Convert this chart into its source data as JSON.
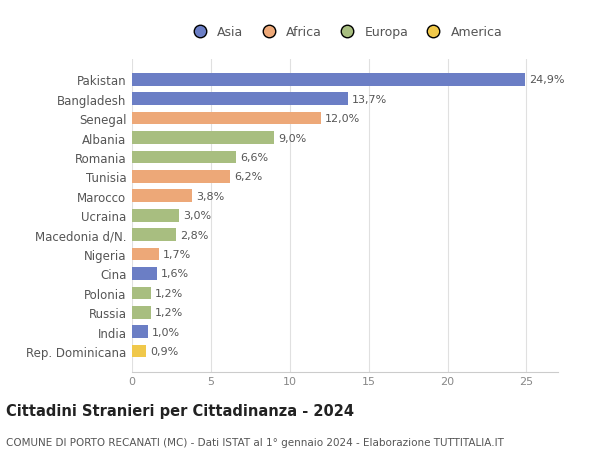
{
  "categories": [
    "Rep. Dominicana",
    "India",
    "Russia",
    "Polonia",
    "Cina",
    "Nigeria",
    "Macedonia d/N.",
    "Ucraina",
    "Marocco",
    "Tunisia",
    "Romania",
    "Albania",
    "Senegal",
    "Bangladesh",
    "Pakistan"
  ],
  "values": [
    0.9,
    1.0,
    1.2,
    1.2,
    1.6,
    1.7,
    2.8,
    3.0,
    3.8,
    6.2,
    6.6,
    9.0,
    12.0,
    13.7,
    24.9
  ],
  "labels": [
    "0,9%",
    "1,0%",
    "1,2%",
    "1,2%",
    "1,6%",
    "1,7%",
    "2,8%",
    "3,0%",
    "3,8%",
    "6,2%",
    "6,6%",
    "9,0%",
    "12,0%",
    "13,7%",
    "24,9%"
  ],
  "bar_colors": [
    "#F0C84A",
    "#6B7EC5",
    "#A8BE80",
    "#A8BE80",
    "#6B7EC5",
    "#EDA878",
    "#A8BE80",
    "#A8BE80",
    "#EDA878",
    "#EDA878",
    "#A8BE80",
    "#A8BE80",
    "#EDA878",
    "#6B7EC5",
    "#6B7EC5"
  ],
  "legend_labels": [
    "Asia",
    "Africa",
    "Europa",
    "America"
  ],
  "legend_colors": [
    "#6B7EC5",
    "#EDA878",
    "#A8BE80",
    "#F0C84A"
  ],
  "title": "Cittadini Stranieri per Cittadinanza - 2024",
  "subtitle": "COMUNE DI PORTO RECANATI (MC) - Dati ISTAT al 1° gennaio 2024 - Elaborazione TUTTITALIA.IT",
  "xlim": [
    0,
    27
  ],
  "xticks": [
    0,
    5,
    10,
    15,
    20,
    25
  ],
  "background_color": "#ffffff",
  "grid_color": "#e0e0e0",
  "bar_height": 0.65,
  "label_fontsize": 8,
  "title_fontsize": 10.5,
  "subtitle_fontsize": 7.5,
  "ytick_fontsize": 8.5,
  "xtick_fontsize": 8
}
